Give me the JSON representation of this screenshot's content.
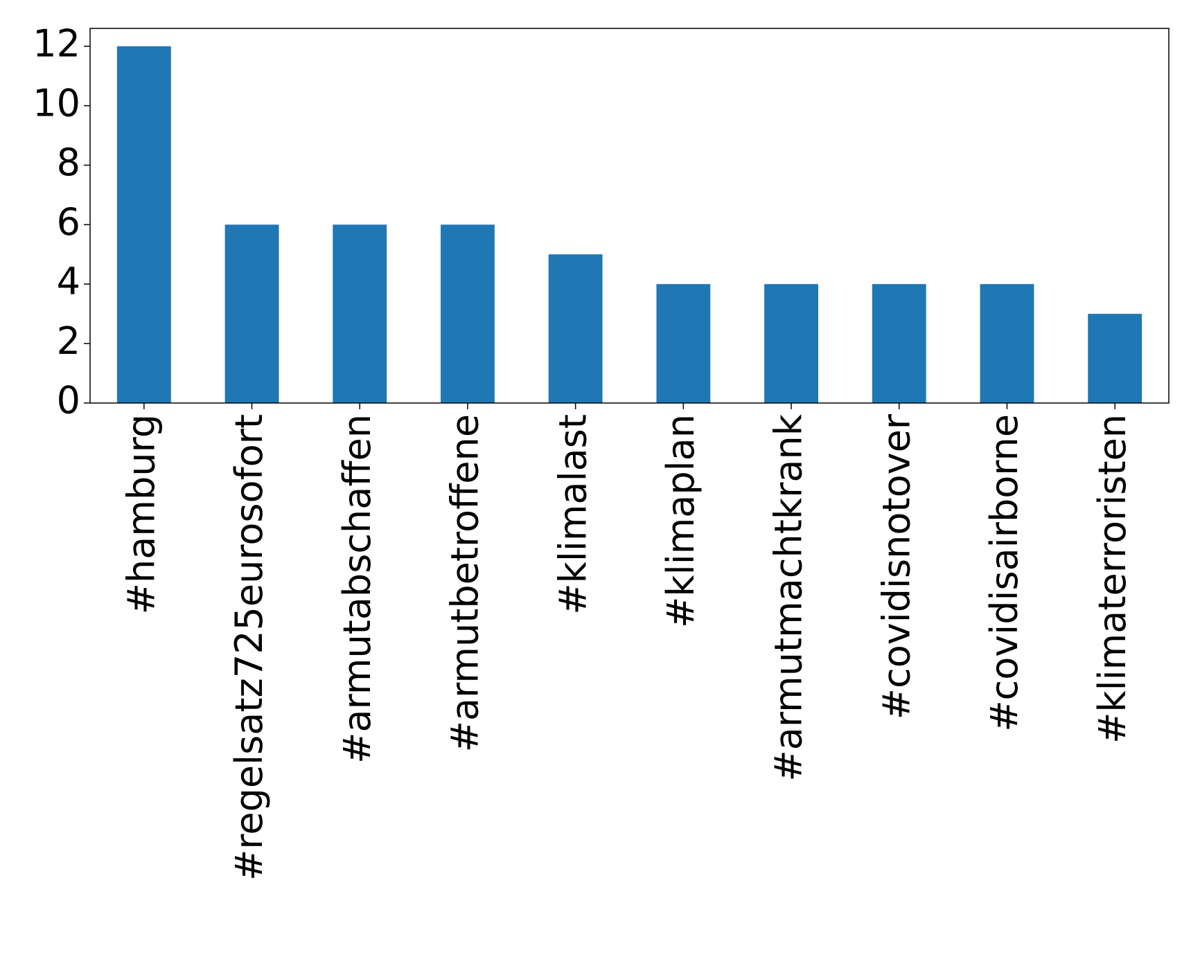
{
  "chart_data": {
    "type": "bar",
    "categories": [
      "#hamburg",
      "#regelsatz725eurosofort",
      "#armutabschaffen",
      "#armutbetroffene",
      "#klimalast",
      "#klimaplan",
      "#armutmachtkrank",
      "#covidisnotover",
      "#covidisairborne",
      "#klimaterroristen"
    ],
    "values": [
      12,
      6,
      6,
      6,
      5,
      4,
      4,
      4,
      4,
      3
    ],
    "color": "#1f77b4",
    "ylim": [
      0,
      12.6
    ],
    "yticks": [
      0,
      2,
      4,
      6,
      8,
      10,
      12
    ],
    "grid": false
  }
}
